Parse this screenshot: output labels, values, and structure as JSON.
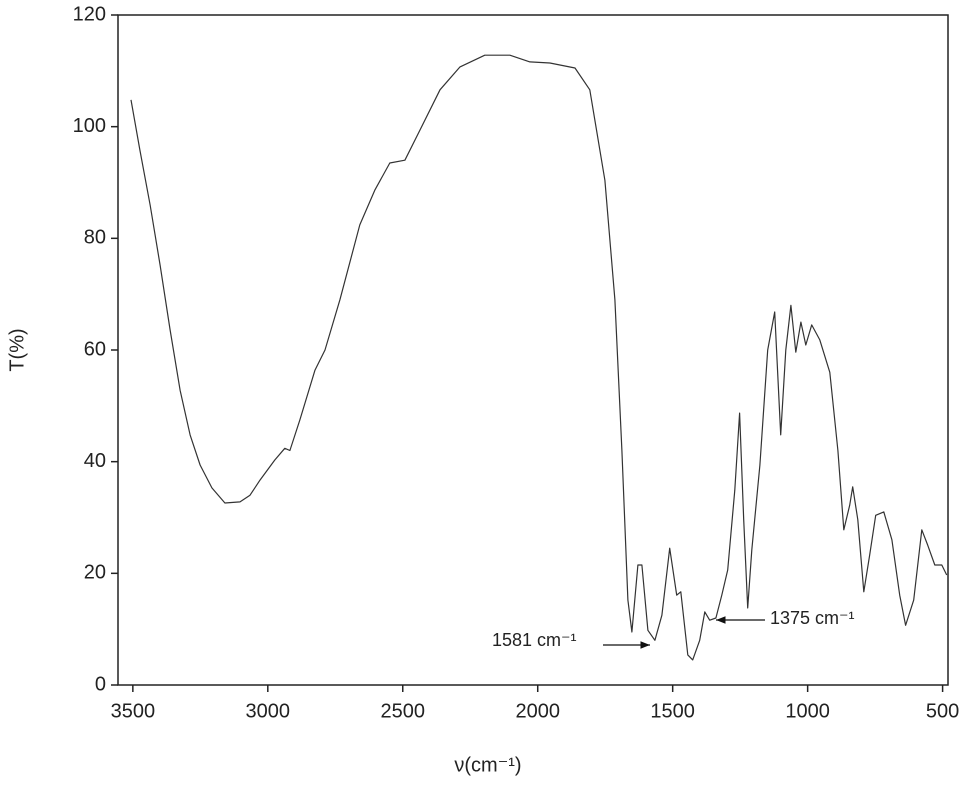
{
  "chart_data": {
    "type": "line",
    "xlabel": "ν(cm⁻¹)",
    "ylabel": "T(%)",
    "color": "#333333",
    "xlim": [
      3555,
      480
    ],
    "ylim": [
      0,
      120
    ],
    "xticks": [
      3500,
      3000,
      2500,
      2000,
      1500,
      1000,
      500
    ],
    "yticks": [
      0,
      20,
      40,
      60,
      80,
      100,
      120
    ],
    "annotations": [
      {
        "text": "1581 cm⁻¹"
      },
      {
        "text": "1375 cm⁻¹"
      }
    ],
    "x": [
      3507,
      3474,
      3436,
      3399,
      3362,
      3325,
      3288,
      3251,
      3207,
      3159,
      3103,
      3066,
      3029,
      2974,
      2937,
      2918,
      2881,
      2825,
      2788,
      2733,
      2659,
      2603,
      2548,
      2492,
      2436,
      2362,
      2288,
      2196,
      2103,
      2029,
      1955,
      1862,
      1807,
      1751,
      1714,
      1688,
      1666,
      1651,
      1629,
      1614,
      1592,
      1566,
      1540,
      1511,
      1485,
      1470,
      1444,
      1426,
      1400,
      1381,
      1363,
      1340,
      1318,
      1296,
      1270,
      1252,
      1237,
      1222,
      1207,
      1177,
      1148,
      1122,
      1100,
      1081,
      1062,
      1044,
      1025,
      1007,
      985,
      955,
      918,
      888,
      866,
      844,
      833,
      814,
      792,
      770,
      748,
      718,
      688,
      659,
      637,
      607,
      577,
      555,
      529,
      503,
      485
    ],
    "values": [
      104.8,
      95.8,
      86,
      75.2,
      63.6,
      52.8,
      44.8,
      39.4,
      35.3,
      32.6,
      32.8,
      34,
      36.7,
      40.3,
      42.4,
      42,
      47.5,
      56.4,
      60,
      69,
      82.4,
      88.7,
      93.5,
      94,
      99.4,
      106.6,
      110.7,
      112.8,
      112.8,
      111.6,
      111.4,
      110.5,
      106.6,
      90.4,
      69,
      42,
      15.2,
      9.5,
      21.5,
      21.5,
      9.8,
      8,
      12.5,
      24.5,
      16.1,
      16.7,
      5.4,
      4.5,
      8,
      13.1,
      11.6,
      12,
      16.1,
      20.6,
      34.9,
      48.7,
      29.6,
      13.8,
      24.2,
      39.4,
      60,
      66.8,
      44.8,
      60,
      68,
      59.6,
      65,
      60.9,
      64.5,
      61.8,
      56,
      42,
      27.8,
      32.2,
      35.5,
      29.6,
      16.7,
      23.3,
      30.4,
      31,
      26,
      16.1,
      10.7,
      15.2,
      27.8,
      25,
      21.5,
      21.5,
      19.7
    ]
  }
}
